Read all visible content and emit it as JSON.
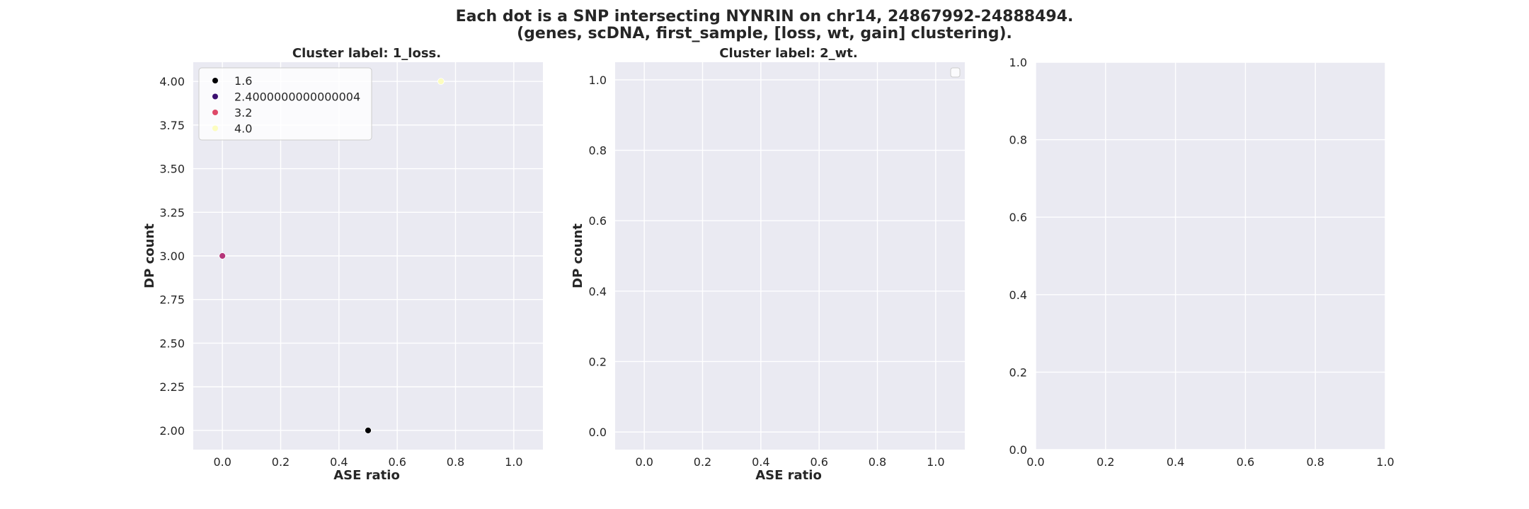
{
  "figure": {
    "title_line1": "Each dot is a SNP intersecting NYNRIN on chr14, 24867992-24888494.",
    "title_line2": "(genes, scDNA, first_sample, [loss, wt, gain] clustering)."
  },
  "colors": {
    "axes_bg": "#eaeaf2",
    "grid": "#ffffff",
    "text": "#262626"
  },
  "chart_data": [
    {
      "type": "scatter",
      "title": "Cluster label: 1_loss.",
      "xlabel": "ASE ratio",
      "ylabel": "DP count",
      "xlim": [
        -0.1,
        1.1
      ],
      "ylim": [
        1.89,
        4.11
      ],
      "xticks": [
        0.0,
        0.2,
        0.4,
        0.6,
        0.8,
        1.0
      ],
      "xtick_labels": [
        "0.0",
        "0.2",
        "0.4",
        "0.6",
        "0.8",
        "1.0"
      ],
      "yticks": [
        2.0,
        2.25,
        2.5,
        2.75,
        3.0,
        3.25,
        3.5,
        3.75,
        4.0
      ],
      "ytick_labels": [
        "2.00",
        "2.25",
        "2.50",
        "2.75",
        "3.00",
        "3.25",
        "3.50",
        "3.75",
        "4.00"
      ],
      "grid": true,
      "legend_position": "top-left",
      "legend": [
        {
          "label": "1.6",
          "color": "#000004"
        },
        {
          "label": "2.4000000000000004",
          "color": "#3b0f70"
        },
        {
          "label": "3.2",
          "color": "#de4968"
        },
        {
          "label": "4.0",
          "color": "#fcfdbf"
        }
      ],
      "points": [
        {
          "x": 0.5,
          "y": 2.0,
          "color": "#000004"
        },
        {
          "x": 0.0,
          "y": 3.0,
          "color": "#b5367a"
        },
        {
          "x": 0.75,
          "y": 4.0,
          "color": "#fcfdbf"
        }
      ]
    },
    {
      "type": "scatter",
      "title": "Cluster label: 2_wt.",
      "xlabel": "ASE ratio",
      "ylabel": "DP count",
      "xlim": [
        -0.1,
        1.1
      ],
      "ylim": [
        -0.05,
        1.05
      ],
      "xticks": [
        0.0,
        0.2,
        0.4,
        0.6,
        0.8,
        1.0
      ],
      "xtick_labels": [
        "0.0",
        "0.2",
        "0.4",
        "0.6",
        "0.8",
        "1.0"
      ],
      "yticks": [
        0.0,
        0.2,
        0.4,
        0.6,
        0.8,
        1.0
      ],
      "ytick_labels": [
        "0.0",
        "0.2",
        "0.4",
        "0.6",
        "0.8",
        "1.0"
      ],
      "grid": true,
      "legend_position": "top-right",
      "legend": [],
      "points": []
    },
    {
      "type": "scatter",
      "title": "",
      "xlabel": "",
      "ylabel": "",
      "xlim": [
        0.0,
        1.0
      ],
      "ylim": [
        0.0,
        1.0
      ],
      "xticks": [
        0.0,
        0.2,
        0.4,
        0.6,
        0.8,
        1.0
      ],
      "xtick_labels": [
        "0.0",
        "0.2",
        "0.4",
        "0.6",
        "0.8",
        "1.0"
      ],
      "yticks": [
        0.0,
        0.2,
        0.4,
        0.6,
        0.8,
        1.0
      ],
      "ytick_labels": [
        "0.0",
        "0.2",
        "0.4",
        "0.6",
        "0.8",
        "1.0"
      ],
      "grid": true,
      "legend_position": "",
      "legend": [],
      "points": []
    }
  ]
}
